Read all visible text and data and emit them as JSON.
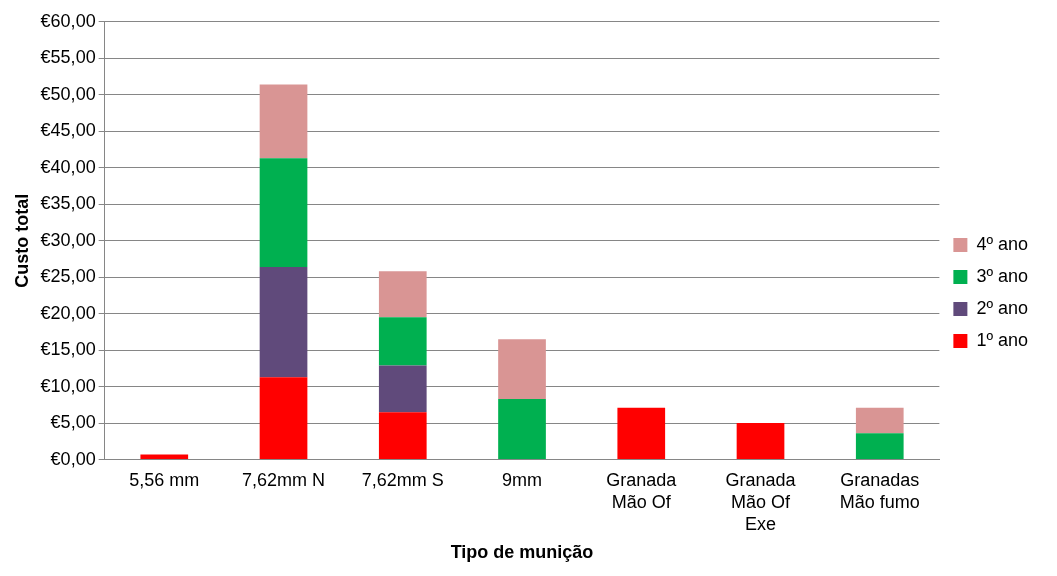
{
  "chart_data": {
    "type": "bar",
    "stacked": true,
    "xlabel": "Tipo de munição",
    "ylabel": "Custo total",
    "categories": [
      "5,56 mm",
      "7,62mm N",
      "7,62mm S",
      "9mm",
      "Granada Mão Of",
      "Granada Mão Of Exe",
      "Granadas Mão fumo"
    ],
    "series": [
      {
        "name": "1º ano",
        "color": "#ff0000",
        "values": [
          0.7,
          11.3,
          6.5,
          0,
          7.1,
          5.0,
          0
        ]
      },
      {
        "name": "2º ano",
        "color": "#604a7b",
        "values": [
          0,
          15.1,
          6.4,
          0,
          0,
          0,
          0
        ]
      },
      {
        "name": "3º ano",
        "color": "#00b050",
        "values": [
          0,
          14.9,
          6.6,
          8.3,
          0,
          0,
          3.6
        ]
      },
      {
        "name": "4º ano",
        "color": "#d99594",
        "values": [
          0,
          10.1,
          6.3,
          8.2,
          0,
          0,
          3.5
        ]
      }
    ],
    "ylim": [
      0,
      60
    ],
    "yticks": [
      {
        "value": 0,
        "label": "€0,00"
      },
      {
        "value": 5,
        "label": "€5,00"
      },
      {
        "value": 10,
        "label": "€10,00"
      },
      {
        "value": 15,
        "label": "€15,00"
      },
      {
        "value": 20,
        "label": "€20,00"
      },
      {
        "value": 25,
        "label": "€25,00"
      },
      {
        "value": 30,
        "label": "€30,00"
      },
      {
        "value": 35,
        "label": "€35,00"
      },
      {
        "value": 40,
        "label": "€40,00"
      },
      {
        "value": 45,
        "label": "€45,00"
      },
      {
        "value": 50,
        "label": "€50,00"
      },
      {
        "value": 55,
        "label": "€55,00"
      },
      {
        "value": 60,
        "label": "€60,00"
      }
    ],
    "grid": "y",
    "legend": "right"
  }
}
